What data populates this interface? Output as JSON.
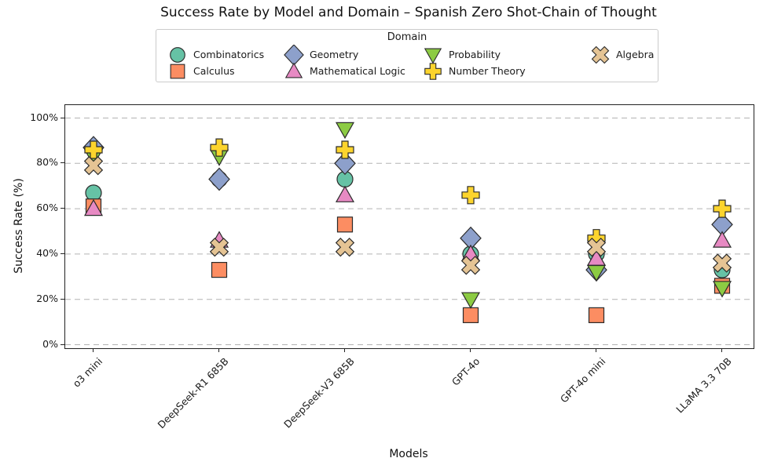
{
  "page": {
    "title": "Success Rate by Model and Domain – Spanish Zero Shot-Chain of Thought"
  },
  "legend": {
    "title": "Domain"
  },
  "axes": {
    "xlabel": "Models",
    "ylabel": "Success Rate (%)"
  },
  "colors": {
    "marker_edge": "#2b2b2b",
    "grid_line": "#b3b3b3",
    "spine": "#222222"
  },
  "chart_data": {
    "type": "scatter",
    "title": "Success Rate by Model and Domain – Spanish Zero Shot-Chain of Thought",
    "xlabel": "Models",
    "ylabel": "Success Rate (%)",
    "ylim": [
      0,
      100
    ],
    "yticks": [
      0,
      20,
      40,
      60,
      80,
      100
    ],
    "ytick_labels": [
      "0%",
      "20%",
      "40%",
      "60%",
      "80%",
      "100%"
    ],
    "grid": "horizontal-dashed",
    "legend_title": "Domain",
    "legend_position": "top-center",
    "categories": [
      "o3 mini",
      "DeepSeek-R1 685B",
      "DeepSeek-V3 685B",
      "GPT-4o",
      "GPT-4o mini",
      "LLaMA 3.3 70B"
    ],
    "series": [
      {
        "name": "Combinatorics",
        "marker": "circle",
        "color": "#66c2a5",
        "values": [
          67,
          73,
          73,
          40,
          40,
          33
        ]
      },
      {
        "name": "Calculus",
        "marker": "square",
        "color": "#fc8d62",
        "values": [
          61,
          33,
          53,
          13,
          13,
          26
        ]
      },
      {
        "name": "Geometry",
        "marker": "diamond",
        "color": "#8da0cb",
        "values": [
          87,
          73,
          80,
          47,
          33,
          53
        ]
      },
      {
        "name": "Mathematical Logic",
        "marker": "triangle-up",
        "color": "#e78ac3",
        "values": [
          60,
          46,
          66,
          40,
          38,
          46
        ]
      },
      {
        "name": "Probability",
        "marker": "triangle-down",
        "color": "#8ccb43",
        "values": [
          83,
          83,
          95,
          20,
          32,
          25
        ]
      },
      {
        "name": "Number Theory",
        "marker": "plus",
        "color": "#fcd42d",
        "values": [
          86,
          87,
          86,
          66,
          47,
          60
        ]
      },
      {
        "name": "Algebra",
        "marker": "x",
        "color": "#e5c494",
        "values": [
          79,
          43,
          43,
          35,
          43,
          36
        ]
      }
    ]
  }
}
